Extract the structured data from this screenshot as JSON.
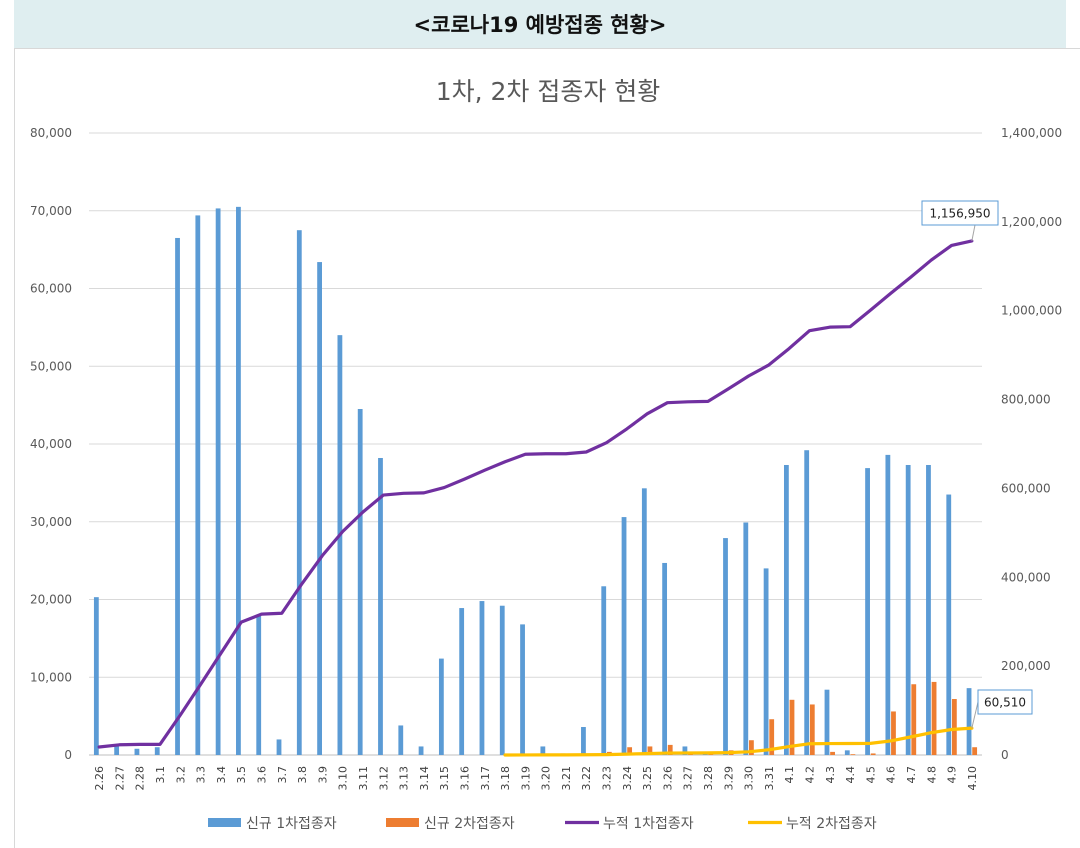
{
  "header": {
    "title": "<코로나19 예방접종 현황>"
  },
  "chart_data": {
    "type": "bar",
    "title": "1차, 2차 접종자 현황",
    "categories": [
      "2.26",
      "2.27",
      "2.28",
      "3.1",
      "3.2",
      "3.3",
      "3.4",
      "3.5",
      "3.6",
      "3.7",
      "3.8",
      "3.9",
      "3.10",
      "3.11",
      "3.12",
      "3.13",
      "3.14",
      "3.15",
      "3.16",
      "3.17",
      "3.18",
      "3.19",
      "3.20",
      "3.21",
      "3.22",
      "3.23",
      "3.24",
      "3.25",
      "3.26",
      "3.27",
      "3.28",
      "3.29",
      "3.30",
      "3.31",
      "4.1",
      "4.2",
      "4.3",
      "4.4",
      "4.5",
      "4.6",
      "4.7",
      "4.8",
      "4.9",
      "4.10"
    ],
    "y_left": {
      "min": 0,
      "max": 80000,
      "ticks": [
        "0",
        "10,000",
        "20,000",
        "30,000",
        "40,000",
        "50,000",
        "60,000",
        "70,000",
        "80,000"
      ]
    },
    "y_right": {
      "min": 0,
      "max": 1400000,
      "ticks": [
        "0",
        "200,000",
        "400,000",
        "600,000",
        "800,000",
        "1,000,000",
        "1,200,000",
        "1,400,000"
      ]
    },
    "series": [
      {
        "name": "신규 1차접종자",
        "type": "bar",
        "axis": "left",
        "color": "#5b9bd5",
        "values": [
          20300,
          1100,
          800,
          1000,
          66500,
          69400,
          70300,
          70500,
          18000,
          2000,
          67500,
          63400,
          54000,
          44500,
          38200,
          3800,
          1100,
          12400,
          18900,
          19800,
          19200,
          16800,
          1100,
          200,
          3600,
          21700,
          30600,
          34300,
          24700,
          1100,
          200,
          27900,
          29900,
          24000,
          37300,
          39200,
          8400,
          600,
          36900,
          38600,
          37300,
          37300,
          33500,
          8600
        ]
      },
      {
        "name": "신규 2차접종자",
        "type": "bar",
        "axis": "left",
        "color": "#ed7d31",
        "values": [
          0,
          0,
          0,
          0,
          0,
          0,
          0,
          0,
          0,
          0,
          0,
          0,
          0,
          0,
          0,
          0,
          0,
          0,
          0,
          0,
          0,
          0,
          0,
          100,
          100,
          400,
          1000,
          1100,
          1300,
          200,
          100,
          600,
          1900,
          4600,
          7100,
          6500,
          400,
          100,
          200,
          5600,
          9100,
          9400,
          7200,
          1000
        ]
      },
      {
        "name": "누적 1차접종자",
        "type": "line",
        "axis": "right",
        "color": "#7030a0",
        "values": [
          18000,
          23000,
          24000,
          24000,
          90000,
          159000,
          229000,
          299000,
          317000,
          319000,
          386000,
          449000,
          503000,
          547000,
          585000,
          589000,
          590000,
          602000,
          621000,
          641000,
          660000,
          677000,
          678000,
          678000,
          682000,
          703000,
          734000,
          768000,
          793000,
          795000,
          796000,
          824000,
          853000,
          878000,
          915000,
          955000,
          963000,
          964000,
          1001000,
          1039000,
          1076000,
          1114000,
          1147000,
          1156950
        ]
      },
      {
        "name": "누적 2차접종자",
        "type": "line",
        "axis": "right",
        "color": "#ffc000",
        "start_index": 20,
        "values": [
          null,
          null,
          null,
          null,
          null,
          null,
          null,
          null,
          null,
          null,
          null,
          null,
          null,
          null,
          null,
          null,
          null,
          null,
          null,
          null,
          0,
          100,
          200,
          300,
          500,
          900,
          2000,
          3100,
          4400,
          4600,
          4700,
          5300,
          7200,
          11800,
          18900,
          25400,
          25800,
          25900,
          26100,
          31700,
          40800,
          50200,
          57400,
          60510
        ]
      }
    ],
    "annotations": [
      {
        "series_index": 2,
        "point_index": 43,
        "text": "1,156,950"
      },
      {
        "series_index": 3,
        "point_index": 43,
        "text": "60,510"
      }
    ],
    "grid": true,
    "legend_position": "bottom"
  }
}
